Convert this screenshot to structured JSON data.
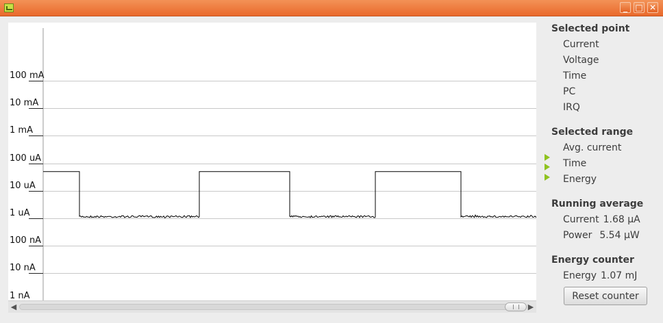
{
  "window": {
    "controls": [
      "_",
      "□",
      "✕"
    ]
  },
  "chart_data": {
    "type": "line",
    "title": "",
    "xlabel": "",
    "ylabel": "",
    "y_scale": "log",
    "y_ticks": [
      "100 mA",
      "10 mA",
      "1 mA",
      "100 uA",
      "10 uA",
      "1 uA",
      "100 nA",
      "10 nA",
      "1 nA"
    ],
    "ylim": [
      "1 nA",
      "1 A"
    ],
    "grid": true,
    "series": [
      {
        "name": "",
        "color": "#000000",
        "segments": [
          {
            "state": "high",
            "current_uA": 50
          },
          {
            "state": "low",
            "current_uA": 1.15
          },
          {
            "state": "high",
            "current_uA": 50
          },
          {
            "state": "low",
            "current_uA": 1.15
          },
          {
            "state": "high",
            "current_uA": 50
          },
          {
            "state": "low",
            "current_uA": 1.15
          }
        ]
      }
    ]
  },
  "panel": {
    "selected_point": {
      "title": "Selected point",
      "rows": [
        "Current",
        "Voltage",
        "Time",
        "PC",
        "IRQ"
      ]
    },
    "selected_range": {
      "title": "Selected range",
      "rows": [
        "Avg. current",
        "Time",
        "Energy"
      ]
    },
    "running_average": {
      "title": "Running average",
      "current_label": "Current",
      "current_value": "1.68 μA",
      "power_label": "Power",
      "power_value": "5.54 μW"
    },
    "energy_counter": {
      "title": "Energy counter",
      "energy_label": "Energy",
      "energy_value": "1.07 mJ",
      "reset_label": "Reset counter"
    }
  },
  "scrollbar": {
    "left_arrow": "◀",
    "right_arrow": "▶"
  }
}
